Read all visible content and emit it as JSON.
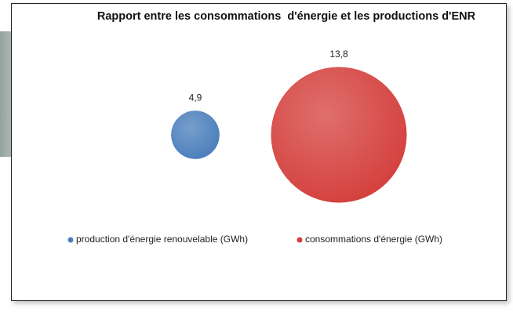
{
  "chart_data": {
    "type": "bubble",
    "title": "Rapport entre les consommations  d'énergie et les productions d'ENR",
    "series": [
      {
        "name": "production d'énergie renouvelable (GWh)",
        "color": "#4a7ebb",
        "values": [
          4.9
        ],
        "value_labels": [
          "4,9"
        ]
      },
      {
        "name": "consommations d'énergie (GWh)",
        "color": "#d43f3c",
        "values": [
          13.8
        ],
        "value_labels": [
          "13,8"
        ]
      }
    ]
  }
}
